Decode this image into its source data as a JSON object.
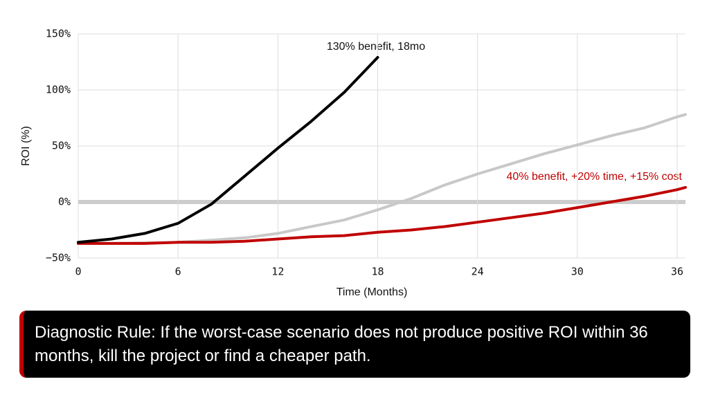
{
  "chart_data": {
    "type": "line",
    "x_label": "Time (Months)",
    "y_label": "ROI (%)",
    "x": [
      0,
      2,
      4,
      6,
      8,
      10,
      12,
      14,
      16,
      18,
      20,
      22,
      24,
      26,
      28,
      30,
      32,
      34,
      36,
      36.5
    ],
    "series": [
      {
        "name": "130% benefit, 18mo",
        "color": "#000000",
        "values": [
          -36,
          -33,
          -28,
          -19,
          -2,
          23,
          48,
          72,
          98,
          129,
          null,
          null,
          null,
          null,
          null,
          null,
          null,
          null,
          null,
          null
        ]
      },
      {
        "color": "#c8c8c8",
        "values": [
          -37,
          -37,
          -36.5,
          -36,
          -34,
          -32,
          -28,
          -22,
          -16,
          -7,
          3,
          15,
          25,
          34,
          43,
          51,
          59,
          66,
          76,
          78
        ]
      },
      {
        "name": "40% benefit, +20% time, +15% cost",
        "color": "#c00000",
        "values": [
          -37,
          -37,
          -37,
          -36,
          -36,
          -35,
          -33,
          -31,
          -30,
          -27,
          -25,
          -22,
          -18,
          -14,
          -10,
          -5,
          0,
          5,
          11,
          13
        ]
      }
    ],
    "xlim": [
      0,
      36.5
    ],
    "xticks": [
      0,
      6,
      12,
      18,
      24,
      30,
      36
    ],
    "ylim": [
      -50,
      150
    ],
    "yticks": [
      {
        "value": -50,
        "label": "−50%"
      },
      {
        "value": 0,
        "label": "0%"
      },
      {
        "value": 50,
        "label": "50%"
      },
      {
        "value": 100,
        "label": "100%"
      },
      {
        "value": 150,
        "label": "150%"
      }
    ],
    "grid": true,
    "zero_line": true
  },
  "callout": {
    "text": "Diagnostic Rule: If the worst-case scenario does not produce positive ROI within 36 months, kill the project or find a cheaper path."
  }
}
